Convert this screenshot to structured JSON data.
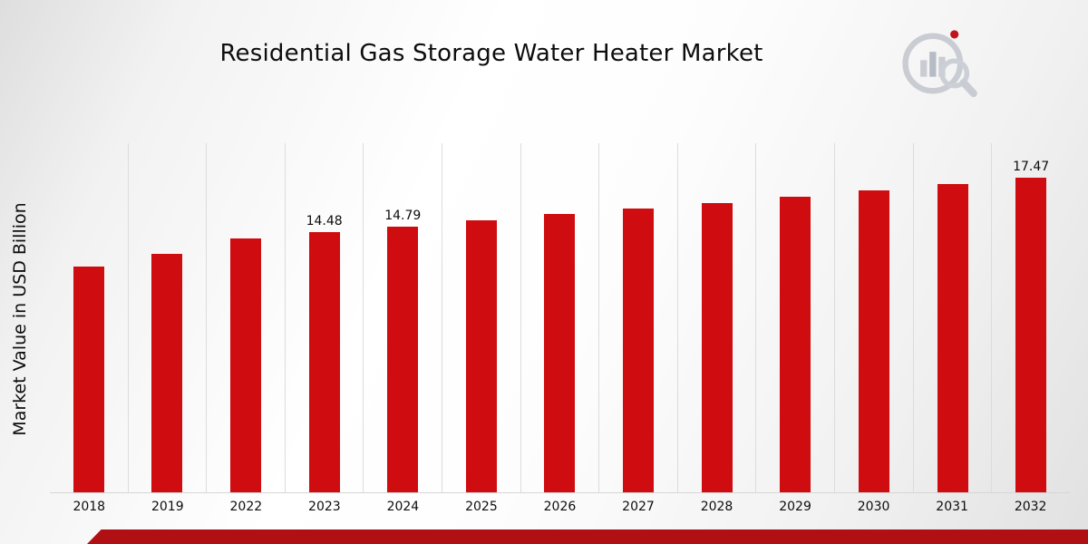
{
  "chart_data": {
    "type": "bar",
    "title": "Residential Gas Storage Water Heater Market",
    "ylabel": "Market Value in USD Billion",
    "xlabel": "",
    "ylim": [
      0,
      19.4
    ],
    "grid": "vertical light gridlines between categories",
    "legend": "none",
    "bar_color": "#cf0c0f",
    "categories": [
      "2018",
      "2019",
      "2022",
      "2023",
      "2024",
      "2025",
      "2026",
      "2027",
      "2028",
      "2029",
      "2030",
      "2031",
      "2032"
    ],
    "values": [
      12.55,
      13.25,
      14.1,
      14.48,
      14.79,
      15.12,
      15.45,
      15.78,
      16.1,
      16.45,
      16.78,
      17.12,
      17.47
    ],
    "data_labels": {
      "2023": "14.48",
      "2024": "14.79",
      "2032": "17.47"
    }
  },
  "colors": {
    "accent_red": "#cf0c0f",
    "banner_red": "#b00f14",
    "gridline": "#dcdcdc",
    "logo_gray": "#c9cdd3"
  },
  "logo": {
    "icon": "bar-chart-magnifier-logo"
  }
}
